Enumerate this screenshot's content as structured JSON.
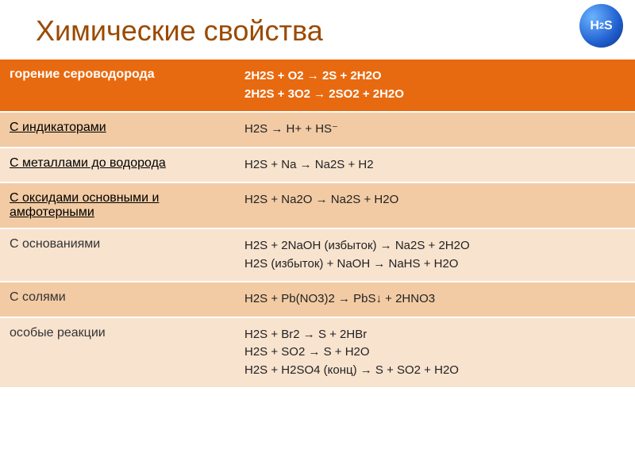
{
  "title": "Химические свойства",
  "badge": "H2S",
  "rows": [
    {
      "label": "горение сероводорода",
      "content": "2H2S + O2 → 2S + 2H2O\n2H2S + 3O2 → 2SO2 + 2H2O",
      "label_underline": false,
      "bg_color": "#e86a10",
      "text_color": "#ffffff",
      "bold": true
    },
    {
      "label": "С индикаторами",
      "content": "H2S → H+ + HS⁻",
      "label_underline": true,
      "bg_color": "#f2cba4",
      "text_color": "#000000"
    },
    {
      "label": "С металлами до водорода",
      "content": "H2S + Na → Na2S + H2",
      "label_underline": true,
      "bg_color": "#f8e3cf",
      "text_color": "#000000"
    },
    {
      "label": "С оксидами основными и амфотерными",
      "content": "H2S + Na2O → Na2S + H2O",
      "label_underline": true,
      "bg_color": "#f2cba4",
      "text_color": "#000000"
    },
    {
      "label": "С основаниями",
      "content": "H2S + 2NaOH (избыток) → Na2S + 2H2O\nH2S (избыток) + NaOH → NaHS + H2O",
      "label_underline": false,
      "bg_color": "#f8e3cf",
      "text_color": "#000000"
    },
    {
      "label": "С солями",
      "content": "H2S + Pb(NO3)2 → PbS↓ + 2HNO3",
      "label_underline": false,
      "bg_color": "#f2cba4",
      "text_color": "#000000"
    },
    {
      "label": "особые реакции",
      "content": "H2S + Br2 → S + 2HBr\nH2S + SO2 →  S + H2O\nH2S + H2SO4 (конц) → S + SO2 + H2O",
      "label_underline": false,
      "bg_color": "#f8e3cf",
      "text_color": "#000000"
    }
  ],
  "styling": {
    "title_color": "#9a4a00",
    "title_fontsize": 36,
    "row_alt_bg_light": "#f8e3cf",
    "row_alt_bg_dark": "#f2cba4",
    "header_bg": "#e86a10",
    "border_color": "#ffffff",
    "label_col_width_pct": 37,
    "content_fontsize": 15,
    "label_fontsize": 16,
    "badge_gradient": [
      "#6bb3ff",
      "#2060d0",
      "#103080"
    ]
  }
}
